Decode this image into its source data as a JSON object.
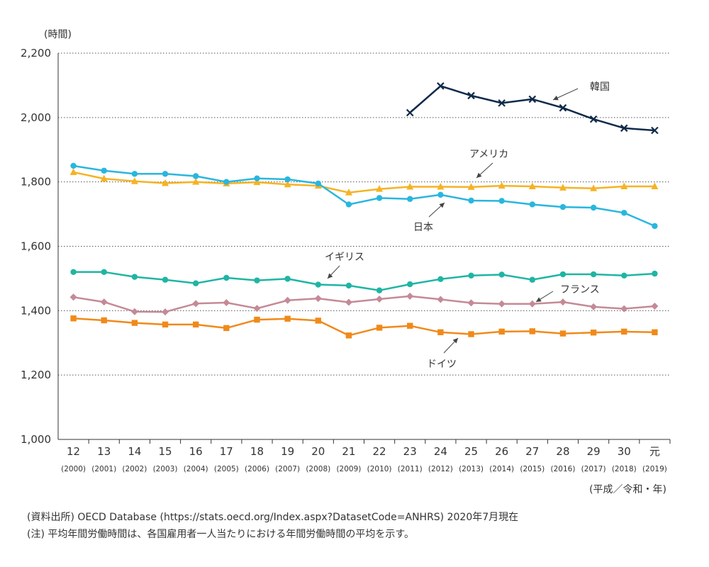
{
  "chart_data": {
    "type": "line",
    "ylabel": "(時間)",
    "xlabel": "(平成／令和・年)",
    "ylim": [
      1000,
      2200
    ],
    "yticks": [
      1000,
      1200,
      1400,
      1600,
      1800,
      2000,
      2200
    ],
    "ytick_labels": [
      "1,000",
      "1,200",
      "1,400",
      "1,600",
      "1,800",
      "2,000",
      "2,200"
    ],
    "grid": true,
    "categories": [
      "12",
      "13",
      "14",
      "15",
      "16",
      "17",
      "18",
      "19",
      "20",
      "21",
      "22",
      "23",
      "24",
      "25",
      "26",
      "27",
      "28",
      "29",
      "30",
      "元"
    ],
    "category_sublabels": [
      "(2000)",
      "(2001)",
      "(2002)",
      "(2003)",
      "(2004)",
      "(2005)",
      "(2006)",
      "(2007)",
      "(2008)",
      "(2009)",
      "(2010)",
      "(2011)",
      "(2012)",
      "(2013)",
      "(2014)",
      "(2015)",
      "(2016)",
      "(2017)",
      "(2018)",
      "(2019)"
    ],
    "series": [
      {
        "name": "韓国",
        "marker": "x",
        "color": "#0f2a4a",
        "values": [
          null,
          null,
          null,
          null,
          null,
          null,
          null,
          null,
          null,
          null,
          null,
          2015,
          2098,
          2068,
          2045,
          2057,
          2030,
          1995,
          1967,
          1960
        ]
      },
      {
        "name": "アメリカ",
        "marker": "triangle",
        "color": "#f5b324",
        "values": [
          1830,
          1810,
          1802,
          1796,
          1800,
          1795,
          1799,
          1792,
          1788,
          1767,
          1778,
          1785,
          1785,
          1784,
          1788,
          1786,
          1782,
          1780,
          1786,
          1786
        ]
      },
      {
        "name": "日本",
        "marker": "circle",
        "color": "#29b6df",
        "values": [
          1850,
          1835,
          1825,
          1825,
          1818,
          1800,
          1811,
          1808,
          1795,
          1730,
          1750,
          1747,
          1760,
          1742,
          1741,
          1730,
          1722,
          1720,
          1704,
          1663
        ]
      },
      {
        "name": "イギリス",
        "marker": "circle",
        "color": "#1fb5a3",
        "values": [
          1520,
          1520,
          1505,
          1496,
          1485,
          1502,
          1494,
          1499,
          1481,
          1478,
          1463,
          1482,
          1498,
          1509,
          1512,
          1496,
          1513,
          1513,
          1509,
          1515
        ]
      },
      {
        "name": "フランス",
        "marker": "diamond",
        "color": "#c48a97",
        "values": [
          1442,
          1427,
          1397,
          1396,
          1422,
          1425,
          1407,
          1432,
          1438,
          1426,
          1436,
          1445,
          1435,
          1424,
          1421,
          1421,
          1427,
          1412,
          1406,
          1414
        ]
      },
      {
        "name": "ドイツ",
        "marker": "square",
        "color": "#f08a1a",
        "values": [
          1376,
          1370,
          1362,
          1357,
          1357,
          1346,
          1372,
          1375,
          1369,
          1323,
          1347,
          1353,
          1333,
          1327,
          1335,
          1336,
          1329,
          1332,
          1335,
          1333
        ]
      }
    ],
    "annotations": [
      "韓国",
      "アメリカ",
      "日本",
      "イギリス",
      "フランス",
      "ドイツ"
    ]
  },
  "notes": {
    "source": "(資料出所) OECD Database (https://stats.oecd.org/Index.aspx?DatasetCode=ANHRS) 2020年7月現在",
    "note": "(注) 平均年間労働時間は、各国雇用者一人当たりにおける年間労働時間の平均を示す。"
  }
}
